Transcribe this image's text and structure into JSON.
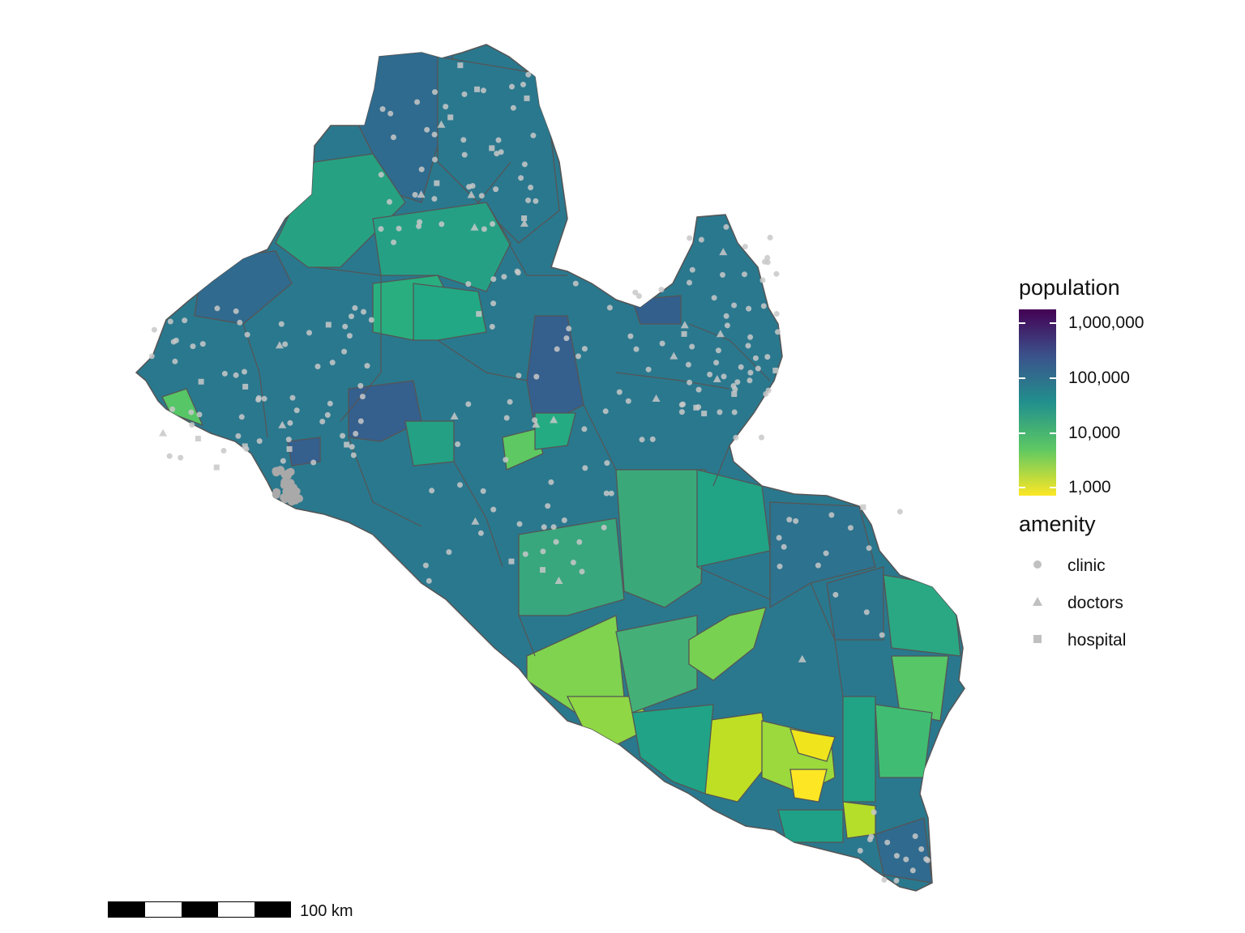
{
  "legend": {
    "population": {
      "title": "population",
      "ticks": [
        "1,000,000",
        "100,000",
        "10,000",
        "1,000"
      ],
      "gradient": [
        "#440154",
        "#3b528b",
        "#21908d",
        "#5dc863",
        "#fde725"
      ]
    },
    "amenity": {
      "title": "amenity",
      "items": [
        {
          "label": "clinic",
          "shape": "circle-icon"
        },
        {
          "label": "doctors",
          "shape": "triangle-icon"
        },
        {
          "label": "hospital",
          "shape": "square-icon"
        }
      ],
      "symbol_color": "#c0c0c0"
    }
  },
  "scale_bar": {
    "label": "100 km"
  },
  "map": {
    "border_color": "#555555",
    "amenity_color": "#c8c8c8"
  }
}
